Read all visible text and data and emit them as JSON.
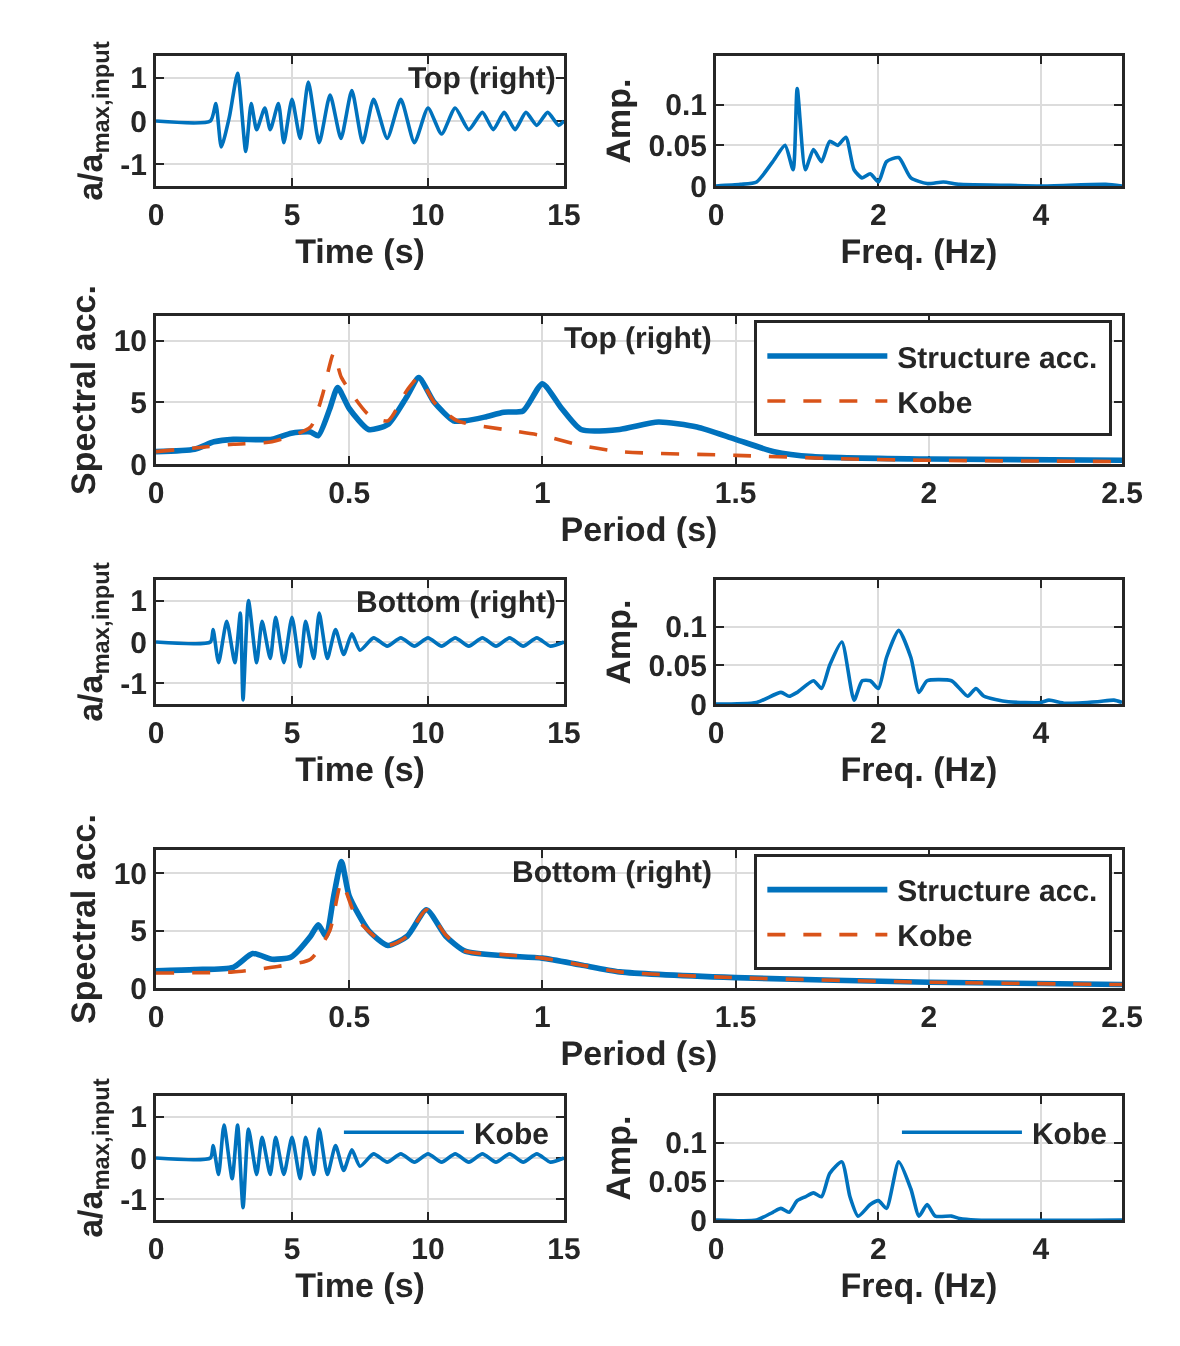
{
  "chart_data": [
    {
      "type": "line",
      "xlabel": "Time (s)",
      "ylabel": "a/a$_{max,input}$",
      "xlim": [
        0,
        15
      ],
      "xticks": [
        0,
        5,
        10,
        15
      ],
      "ylim": [
        -1.5,
        1.5
      ],
      "yticks": [
        -1,
        0,
        1
      ],
      "grid": true,
      "annotations": [
        "Top (right)"
      ],
      "series": [
        {
          "color": "#0072bd",
          "x": [
            0,
            2,
            2.2,
            2.4,
            2.7,
            3.0,
            3.3,
            3.5,
            3.7,
            4.0,
            4.2,
            4.5,
            4.7,
            5.0,
            5.3,
            5.6,
            6.0,
            6.4,
            6.8,
            7.2,
            7.6,
            8.0,
            8.5,
            9.0,
            9.5,
            10.0,
            10.5,
            11.0,
            11.5,
            12.0,
            12.4,
            12.8,
            13.2,
            13.6,
            14.0,
            14.4,
            14.8,
            15
          ],
          "values": [
            0,
            0,
            0.4,
            -0.6,
            0.1,
            1.1,
            -0.7,
            0.4,
            -0.2,
            0.3,
            -0.2,
            0.4,
            -0.5,
            0.5,
            -0.4,
            0.9,
            -0.5,
            0.6,
            -0.4,
            0.7,
            -0.5,
            0.5,
            -0.4,
            0.5,
            -0.5,
            0.3,
            -0.3,
            0.3,
            -0.2,
            0.2,
            -0.2,
            0.2,
            -0.2,
            0.2,
            -0.1,
            0.2,
            -0.1,
            0
          ]
        }
      ]
    },
    {
      "type": "line",
      "xlabel": "Freq. (Hz)",
      "ylabel": "Amp.",
      "xlim": [
        0,
        5
      ],
      "xticks": [
        0,
        2,
        4
      ],
      "ylim": [
        0,
        0.16
      ],
      "yticks": [
        0,
        0.05,
        0.1
      ],
      "grid": true,
      "series": [
        {
          "color": "#0072bd",
          "x": [
            0,
            0.3,
            0.5,
            0.7,
            0.85,
            0.95,
            1.0,
            1.1,
            1.2,
            1.3,
            1.4,
            1.5,
            1.6,
            1.7,
            1.8,
            1.9,
            2.0,
            2.1,
            2.25,
            2.4,
            2.6,
            2.8,
            3.0,
            3.5,
            4.0,
            4.8,
            5
          ],
          "values": [
            0,
            0.002,
            0.005,
            0.03,
            0.05,
            0.02,
            0.12,
            0.02,
            0.045,
            0.03,
            0.055,
            0.05,
            0.06,
            0.02,
            0.01,
            0.015,
            0.005,
            0.03,
            0.035,
            0.01,
            0.003,
            0.005,
            0.002,
            0.001,
            0,
            0.002,
            0
          ]
        }
      ]
    },
    {
      "type": "line",
      "xlabel": "Period (s)",
      "ylabel": "Spectral acc.",
      "xlim": [
        0,
        2.5
      ],
      "xticks": [
        0,
        0.5,
        1,
        1.5,
        2,
        2.5
      ],
      "ylim": [
        0,
        12
      ],
      "yticks": [
        0,
        5,
        10
      ],
      "grid": true,
      "legend": "top right",
      "annotations": [
        "Top (right)"
      ],
      "series": [
        {
          "name": "Structure acc.",
          "color": "#0072bd",
          "line_style": "solid",
          "x": [
            0,
            0.1,
            0.15,
            0.2,
            0.3,
            0.35,
            0.4,
            0.42,
            0.45,
            0.47,
            0.5,
            0.55,
            0.6,
            0.65,
            0.68,
            0.72,
            0.77,
            0.8,
            0.85,
            0.9,
            0.95,
            1.0,
            1.05,
            1.1,
            1.2,
            1.3,
            1.4,
            1.5,
            1.6,
            1.7,
            2.0,
            2.5
          ],
          "values": [
            1,
            1.2,
            1.8,
            2.0,
            2.0,
            2.5,
            2.6,
            2.3,
            4.5,
            6.2,
            4.5,
            2.8,
            3.2,
            5.5,
            7.0,
            5.0,
            3.5,
            3.5,
            3.8,
            4.2,
            4.3,
            6.5,
            4.5,
            2.8,
            2.8,
            3.4,
            3.0,
            2.0,
            1.0,
            0.6,
            0.4,
            0.3
          ]
        },
        {
          "name": "Kobe",
          "color": "#d95319",
          "line_style": "dashed",
          "x": [
            0,
            0.1,
            0.2,
            0.3,
            0.4,
            0.43,
            0.46,
            0.48,
            0.55,
            0.6,
            0.65,
            0.68,
            0.72,
            0.78,
            0.9,
            1.0,
            1.1,
            1.2,
            1.5,
            1.8,
            2.0,
            2.5
          ],
          "values": [
            1.0,
            1.3,
            1.6,
            1.8,
            3.0,
            5.5,
            9.0,
            7.0,
            4.0,
            3.5,
            6.0,
            7.0,
            5.0,
            3.5,
            2.8,
            2.3,
            1.5,
            1.0,
            0.7,
            0.4,
            0.3,
            0.2
          ]
        }
      ]
    },
    {
      "type": "line",
      "xlabel": "Time (s)",
      "ylabel": "a/a$_{max,input}$",
      "xlim": [
        0,
        15
      ],
      "xticks": [
        0,
        5,
        10,
        15
      ],
      "ylim": [
        -1.5,
        1.5
      ],
      "yticks": [
        -1,
        0,
        1
      ],
      "grid": true,
      "annotations": [
        "Bottom (right)"
      ],
      "series": [
        {
          "color": "#0072bd",
          "x": [
            0,
            2,
            2.1,
            2.3,
            2.6,
            2.9,
            3.1,
            3.2,
            3.4,
            3.7,
            3.9,
            4.2,
            4.4,
            4.7,
            5.0,
            5.3,
            5.5,
            5.8,
            6.0,
            6.3,
            6.6,
            6.9,
            7.2,
            7.5,
            8.0,
            8.5,
            9.0,
            9.5,
            10.0,
            10.5,
            11.0,
            11.5,
            12.0,
            12.5,
            13.0,
            13.5,
            14.0,
            14.5,
            15
          ],
          "values": [
            0,
            0,
            0.3,
            -0.5,
            0.5,
            -0.5,
            0.7,
            -1.4,
            1.0,
            -0.5,
            0.5,
            -0.4,
            0.6,
            -0.5,
            0.6,
            -0.6,
            0.5,
            -0.4,
            0.7,
            -0.4,
            0.3,
            -0.3,
            0.2,
            -0.2,
            0.1,
            -0.1,
            0.1,
            -0.1,
            0.1,
            -0.1,
            0.1,
            -0.1,
            0.1,
            -0.1,
            0.1,
            -0.1,
            0.1,
            -0.1,
            0
          ]
        }
      ]
    },
    {
      "type": "line",
      "xlabel": "Freq. (Hz)",
      "ylabel": "Amp.",
      "xlim": [
        0,
        5
      ],
      "xticks": [
        0,
        2,
        4
      ],
      "ylim": [
        0,
        0.16
      ],
      "yticks": [
        0,
        0.05,
        0.1
      ],
      "grid": true,
      "series": [
        {
          "color": "#0072bd",
          "x": [
            0,
            0.5,
            0.8,
            0.9,
            1.0,
            1.2,
            1.3,
            1.4,
            1.55,
            1.7,
            1.8,
            1.9,
            2.0,
            2.1,
            2.25,
            2.4,
            2.5,
            2.6,
            2.9,
            3.0,
            3.1,
            3.2,
            3.3,
            3.6,
            4.0,
            4.1,
            4.3,
            4.7,
            4.9,
            5
          ],
          "values": [
            0,
            0.002,
            0.015,
            0.01,
            0.015,
            0.03,
            0.02,
            0.05,
            0.08,
            0.005,
            0.03,
            0.03,
            0.02,
            0.06,
            0.095,
            0.06,
            0.015,
            0.03,
            0.03,
            0.02,
            0.01,
            0.02,
            0.01,
            0.003,
            0.002,
            0.005,
            0.001,
            0.003,
            0.005,
            0.002
          ]
        }
      ]
    },
    {
      "type": "line",
      "xlabel": "Period (s)",
      "ylabel": "Spectral acc.",
      "xlim": [
        0,
        2.5
      ],
      "xticks": [
        0,
        0.5,
        1,
        1.5,
        2,
        2.5
      ],
      "ylim": [
        0,
        12
      ],
      "yticks": [
        0,
        5,
        10
      ],
      "grid": true,
      "legend": "top right",
      "annotations": [
        "Bottom (right)"
      ],
      "series": [
        {
          "name": "Structure acc.",
          "color": "#0072bd",
          "line_style": "solid",
          "x": [
            0,
            0.1,
            0.2,
            0.25,
            0.3,
            0.35,
            0.4,
            0.42,
            0.44,
            0.46,
            0.48,
            0.5,
            0.55,
            0.6,
            0.65,
            0.7,
            0.75,
            0.8,
            0.9,
            1.0,
            1.1,
            1.2,
            1.5,
            2.0,
            2.5
          ],
          "values": [
            1.5,
            1.6,
            1.8,
            3.0,
            2.5,
            2.7,
            4.5,
            5.5,
            4.5,
            8,
            11,
            8,
            5,
            3.7,
            4.5,
            6.8,
            4.5,
            3.2,
            2.8,
            2.6,
            2.0,
            1.4,
            0.9,
            0.5,
            0.3
          ]
        },
        {
          "name": "Kobe",
          "color": "#d95319",
          "line_style": "dashed",
          "x": [
            0,
            0.2,
            0.3,
            0.4,
            0.45,
            0.48,
            0.52,
            0.6,
            0.65,
            0.7,
            0.75,
            0.8,
            0.9,
            1.0,
            1.1,
            1.2,
            1.5,
            2.0,
            2.5
          ],
          "values": [
            1.3,
            1.4,
            1.8,
            2.5,
            5,
            9.2,
            6,
            3.7,
            4.5,
            6.8,
            4.6,
            3.2,
            2.9,
            2.6,
            2.0,
            1.4,
            0.9,
            0.5,
            0.3
          ]
        }
      ]
    },
    {
      "type": "line",
      "xlabel": "Time (s)",
      "ylabel": "a/a$_{max,input}$",
      "xlim": [
        0,
        15
      ],
      "xticks": [
        0,
        5,
        10,
        15
      ],
      "ylim": [
        -1.5,
        1.5
      ],
      "yticks": [
        -1,
        0,
        1
      ],
      "grid": true,
      "legend": "top right",
      "series": [
        {
          "name": "Kobe",
          "color": "#0072bd",
          "x": [
            0,
            2,
            2.1,
            2.3,
            2.5,
            2.8,
            3.0,
            3.2,
            3.4,
            3.7,
            3.9,
            4.2,
            4.4,
            4.7,
            5.0,
            5.3,
            5.5,
            5.8,
            6.0,
            6.3,
            6.6,
            6.9,
            7.2,
            7.5,
            8.0,
            8.5,
            9.0,
            9.5,
            10.0,
            10.5,
            11.0,
            11.5,
            12.0,
            12.5,
            13.0,
            13.5,
            14.0,
            14.5,
            15
          ],
          "values": [
            0,
            0,
            0.3,
            -0.4,
            0.8,
            -0.5,
            0.8,
            -1.2,
            0.7,
            -0.4,
            0.5,
            -0.4,
            0.5,
            -0.4,
            0.5,
            -0.5,
            0.5,
            -0.4,
            0.7,
            -0.4,
            0.3,
            -0.3,
            0.2,
            -0.2,
            0.1,
            -0.1,
            0.1,
            -0.1,
            0.1,
            -0.1,
            0.1,
            -0.1,
            0.1,
            -0.1,
            0.1,
            -0.1,
            0.1,
            -0.1,
            0
          ]
        }
      ]
    },
    {
      "type": "line",
      "xlabel": "Freq. (Hz)",
      "ylabel": "Amp.",
      "xlim": [
        0,
        5
      ],
      "xticks": [
        0,
        2,
        4
      ],
      "ylim": [
        0,
        0.16
      ],
      "yticks": [
        0,
        0.05,
        0.1
      ],
      "grid": true,
      "legend": "top right",
      "series": [
        {
          "name": "Kobe",
          "color": "#0072bd",
          "x": [
            0,
            0.5,
            0.7,
            0.8,
            0.9,
            1.0,
            1.1,
            1.2,
            1.3,
            1.4,
            1.55,
            1.65,
            1.75,
            1.9,
            2.0,
            2.1,
            2.25,
            2.4,
            2.5,
            2.6,
            2.7,
            2.9,
            3.0,
            3.2,
            5
          ],
          "values": [
            0,
            0,
            0.01,
            0.015,
            0.01,
            0.025,
            0.03,
            0.035,
            0.03,
            0.06,
            0.075,
            0.03,
            0.005,
            0.02,
            0.025,
            0.015,
            0.075,
            0.04,
            0.005,
            0.02,
            0.005,
            0.005,
            0.002,
            0,
            0
          ]
        }
      ]
    }
  ]
}
